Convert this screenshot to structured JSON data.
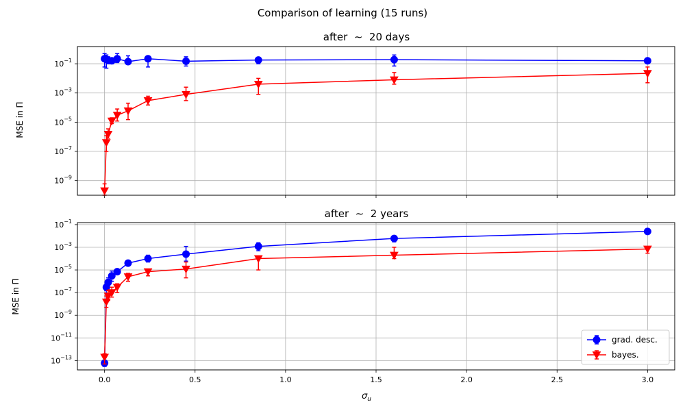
{
  "figure": {
    "suptitle": "Comparison of learning (15 runs)"
  },
  "chart_data": [
    {
      "type": "line",
      "title": "after $\\sim$ 20 days",
      "title_display": "after  ∼  20 days",
      "ylabel": "MSE in Π",
      "xlabel": "",
      "yscale": "log",
      "ylim": [
        1e-10,
        1.5
      ],
      "xlim": [
        -0.15,
        3.15
      ],
      "grid": true,
      "x_ticks": [
        0.0,
        0.5,
        1.0,
        1.5,
        2.0,
        2.5,
        3.0
      ],
      "x_tick_labels": [
        "",
        "",
        "",
        "",
        "",
        "",
        ""
      ],
      "y_ticks": [
        1e-09,
        1e-07,
        1e-05,
        0.001,
        0.1
      ],
      "y_tick_labels": [
        {
          "base": "10",
          "exp": "−9"
        },
        {
          "base": "10",
          "exp": "−7"
        },
        {
          "base": "10",
          "exp": "−5"
        },
        {
          "base": "10",
          "exp": "−3"
        },
        {
          "base": "10",
          "exp": "−1"
        }
      ],
      "x": [
        0.0,
        0.01,
        0.02,
        0.04,
        0.07,
        0.13,
        0.24,
        0.45,
        0.85,
        1.6,
        3.0
      ],
      "series": [
        {
          "name": "grad. desc.",
          "color": "#0000ff",
          "marker": "circle",
          "values": [
            0.22,
            0.2,
            0.17,
            0.16,
            0.22,
            0.14,
            0.22,
            0.15,
            0.18,
            0.19,
            0.16
          ],
          "err_low": [
            0.06,
            0.05,
            0.1,
            0.1,
            0.12,
            0.1,
            0.06,
            0.07,
            0.1,
            0.07,
            0.12
          ],
          "err_high": [
            0.5,
            0.4,
            0.3,
            0.25,
            0.5,
            0.35,
            0.27,
            0.3,
            0.25,
            0.4,
            0.2
          ]
        },
        {
          "name": "bayes.",
          "color": "#ff0000",
          "marker": "triangle-down",
          "values": [
            2e-10,
            4e-07,
            1.5e-06,
            1.2e-05,
            3e-05,
            6e-05,
            0.0003,
            0.0008,
            0.004,
            0.008,
            0.022
          ],
          "err_low": [
            1e-10,
            1e-07,
            8e-07,
            8e-06,
            1.2e-05,
            1.5e-05,
            0.00015,
            0.0003,
            0.0008,
            0.004,
            0.005
          ],
          "err_high": [
            6e-10,
            1.2e-06,
            3.5e-06,
            2e-05,
            8e-05,
            0.0002,
            0.0006,
            0.0025,
            0.01,
            0.025,
            0.06
          ]
        }
      ]
    },
    {
      "type": "line",
      "title": "after $\\sim$ 2 years",
      "title_display": "after  ∼  2 years",
      "ylabel": "MSE in Π",
      "xlabel": "σ",
      "xlabel_sub": "u",
      "yscale": "log",
      "ylim": [
        1.5e-14,
        0.15
      ],
      "xlim": [
        -0.15,
        3.15
      ],
      "grid": true,
      "legend": "bottom-right",
      "x_ticks": [
        0.0,
        0.5,
        1.0,
        1.5,
        2.0,
        2.5,
        3.0
      ],
      "x_tick_labels": [
        "0.0",
        "0.5",
        "1.0",
        "1.5",
        "2.0",
        "2.5",
        "3.0"
      ],
      "y_ticks": [
        1e-13,
        1e-11,
        1e-09,
        1e-07,
        1e-05,
        0.001,
        0.1
      ],
      "y_tick_labels": [
        {
          "base": "10",
          "exp": "−13"
        },
        {
          "base": "10",
          "exp": "−11"
        },
        {
          "base": "10",
          "exp": "−9"
        },
        {
          "base": "10",
          "exp": "−7"
        },
        {
          "base": "10",
          "exp": "−5"
        },
        {
          "base": "10",
          "exp": "−3"
        },
        {
          "base": "10",
          "exp": "−1"
        }
      ],
      "x": [
        0.0,
        0.01,
        0.02,
        0.04,
        0.07,
        0.13,
        0.24,
        0.45,
        0.85,
        1.6,
        3.0
      ],
      "series": [
        {
          "name": "grad. desc.",
          "color": "#0000ff",
          "marker": "circle",
          "values": [
            6e-14,
            3e-07,
            8e-07,
            3e-06,
            7e-06,
            4e-05,
            0.0001,
            0.00025,
            0.0012,
            0.006,
            0.025
          ],
          "err_low": [
            3e-14,
            1.5e-07,
            3e-07,
            1e-06,
            4e-06,
            2.5e-05,
            5e-05,
            6e-05,
            0.0005,
            0.003,
            0.015
          ],
          "err_high": [
            1e-13,
            5e-07,
            2e-06,
            8e-06,
            1e-05,
            6e-05,
            0.0002,
            0.0012,
            0.0025,
            0.01,
            0.035
          ]
        },
        {
          "name": "bayes.",
          "color": "#ff0000",
          "marker": "triangle-down",
          "values": [
            2e-13,
            1.5e-08,
            5e-08,
            1e-07,
            3e-07,
            2.5e-06,
            7e-06,
            1.2e-05,
            0.0001,
            0.0002,
            0.0007
          ],
          "err_low": [
            5e-14,
            5e-09,
            2e-08,
            4e-08,
            1e-07,
            1e-06,
            3e-06,
            2e-06,
            1e-05,
            0.0001,
            0.0003
          ],
          "err_high": [
            4e-13,
            5e-08,
            1.5e-07,
            3e-07,
            6e-07,
            5e-06,
            1e-05,
            5e-05,
            0.00013,
            0.001,
            0.001
          ]
        }
      ]
    }
  ]
}
